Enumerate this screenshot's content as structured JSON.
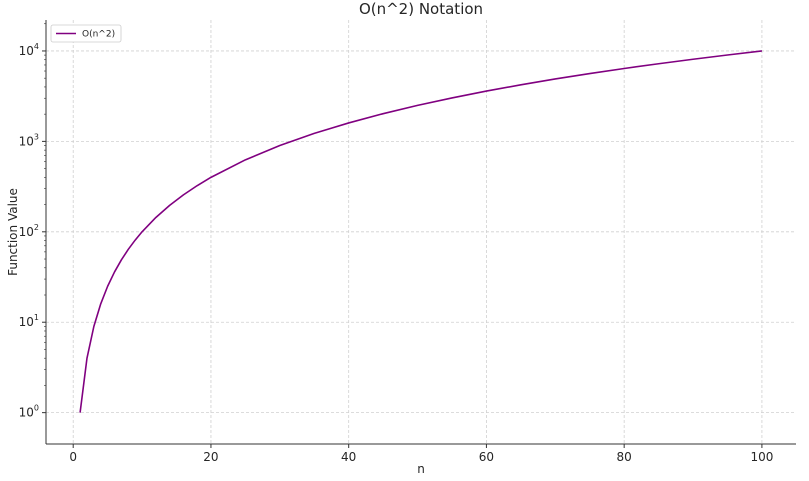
{
  "chart_data": {
    "type": "line",
    "title": "O(n^2) Notation",
    "xlabel": "n",
    "ylabel": "Function Value",
    "xlim": [
      -3.95,
      104.95
    ],
    "ylim": [
      0.45,
      22000
    ],
    "yscale": "log",
    "grid": true,
    "legend_position": "top-left",
    "x_ticks": [
      0,
      20,
      40,
      60,
      80,
      100
    ],
    "x_tick_labels": [
      "0",
      "20",
      "40",
      "60",
      "80",
      "100"
    ],
    "y_ticks": [
      1,
      10,
      100,
      1000,
      10000
    ],
    "y_tick_labels": [
      {
        "base": "10",
        "exp": "0"
      },
      {
        "base": "10",
        "exp": "1"
      },
      {
        "base": "10",
        "exp": "2"
      },
      {
        "base": "10",
        "exp": "3"
      },
      {
        "base": "10",
        "exp": "4"
      }
    ],
    "series": [
      {
        "name": "O(n^2)",
        "color": "#800080",
        "x": [
          1,
          2,
          3,
          4,
          5,
          6,
          7,
          8,
          9,
          10,
          12,
          14,
          16,
          18,
          20,
          25,
          30,
          35,
          40,
          45,
          50,
          55,
          60,
          65,
          70,
          75,
          80,
          85,
          90,
          95,
          100
        ],
        "y": [
          1,
          4,
          9,
          16,
          25,
          36,
          49,
          64,
          81,
          100,
          144,
          196,
          256,
          324,
          400,
          625,
          900,
          1225,
          1600,
          2025,
          2500,
          3025,
          3600,
          4225,
          4900,
          5625,
          6400,
          7225,
          8100,
          9025,
          10000
        ]
      }
    ]
  }
}
